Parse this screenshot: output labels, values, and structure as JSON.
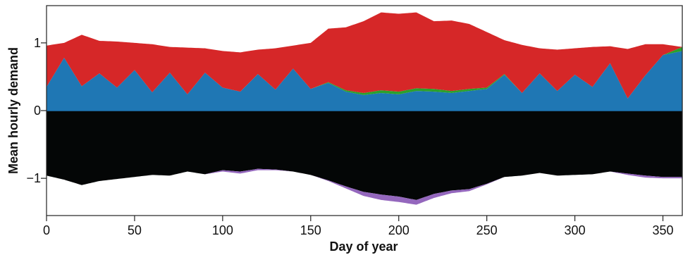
{
  "chart_data": {
    "type": "area",
    "title": "",
    "xlabel": "Day of year",
    "ylabel": "Mean hourly demand",
    "xlim": [
      0,
      361
    ],
    "ylim": [
      -1.55,
      1.55
    ],
    "x_ticks": [
      0,
      50,
      100,
      150,
      200,
      250,
      300,
      350
    ],
    "x_tick_labels": [
      "0",
      "50",
      "100",
      "150",
      "200",
      "250",
      "300",
      "350"
    ],
    "y_ticks": [
      1,
      0,
      -1
    ],
    "y_tick_labels": [
      "1",
      "0",
      "−1"
    ],
    "grid": false,
    "legend": "none",
    "stack_note": "positive stack above zero; negative stack below zero",
    "series": [
      {
        "name": "",
        "color": "#1f77b4",
        "side": "positive",
        "x": [
          0,
          10,
          20,
          30,
          40,
          50,
          60,
          70,
          80,
          90,
          100,
          110,
          120,
          130,
          140,
          150,
          160,
          170,
          180,
          190,
          200,
          210,
          220,
          230,
          240,
          250,
          260,
          270,
          280,
          290,
          300,
          310,
          320,
          330,
          340,
          350,
          361
        ],
        "values": [
          0.35,
          0.78,
          0.36,
          0.55,
          0.34,
          0.6,
          0.27,
          0.56,
          0.24,
          0.56,
          0.34,
          0.28,
          0.54,
          0.31,
          0.62,
          0.32,
          0.41,
          0.28,
          0.23,
          0.26,
          0.24,
          0.29,
          0.28,
          0.26,
          0.29,
          0.32,
          0.53,
          0.26,
          0.55,
          0.29,
          0.53,
          0.35,
          0.7,
          0.18,
          0.52,
          0.82,
          0.88
        ]
      },
      {
        "name": "",
        "color": "#2ca02c",
        "side": "positive",
        "x": [
          0,
          10,
          20,
          30,
          40,
          50,
          60,
          70,
          80,
          90,
          100,
          110,
          120,
          130,
          140,
          150,
          160,
          170,
          180,
          190,
          200,
          210,
          220,
          230,
          240,
          250,
          260,
          270,
          280,
          290,
          300,
          310,
          320,
          330,
          340,
          350,
          361
        ],
        "values": [
          0.0,
          0.0,
          0.0,
          0.0,
          0.0,
          0.0,
          0.0,
          0.0,
          0.0,
          0.0,
          0.0,
          0.0,
          0.0,
          0.0,
          0.0,
          0.0,
          0.01,
          0.02,
          0.03,
          0.04,
          0.04,
          0.04,
          0.04,
          0.03,
          0.03,
          0.02,
          0.01,
          0.0,
          0.0,
          0.0,
          0.0,
          0.0,
          0.0,
          0.0,
          0.0,
          0.0,
          0.06
        ]
      },
      {
        "name": "",
        "color": "#d62728",
        "side": "positive",
        "x": [
          0,
          10,
          20,
          30,
          40,
          50,
          60,
          70,
          80,
          90,
          100,
          110,
          120,
          130,
          140,
          150,
          160,
          170,
          180,
          190,
          200,
          210,
          220,
          230,
          240,
          250,
          260,
          270,
          280,
          290,
          300,
          310,
          320,
          330,
          340,
          350,
          361
        ],
        "values": [
          0.61,
          0.22,
          0.76,
          0.48,
          0.68,
          0.4,
          0.71,
          0.38,
          0.69,
          0.36,
          0.54,
          0.58,
          0.36,
          0.61,
          0.34,
          0.68,
          0.79,
          0.93,
          1.06,
          1.15,
          1.15,
          1.12,
          1.0,
          1.04,
          0.96,
          0.82,
          0.5,
          0.71,
          0.37,
          0.61,
          0.39,
          0.59,
          0.25,
          0.73,
          0.46,
          0.16,
          0.0
        ]
      },
      {
        "name": "",
        "color": "#040606",
        "side": "negative",
        "x": [
          0,
          10,
          20,
          30,
          40,
          50,
          60,
          70,
          80,
          90,
          100,
          110,
          120,
          130,
          140,
          150,
          160,
          170,
          180,
          190,
          200,
          210,
          220,
          230,
          240,
          250,
          260,
          270,
          280,
          290,
          300,
          310,
          320,
          330,
          340,
          350,
          361
        ],
        "values": [
          -0.96,
          -1.02,
          -1.1,
          -1.04,
          -1.01,
          -0.98,
          -0.95,
          -0.96,
          -0.9,
          -0.94,
          -0.88,
          -0.9,
          -0.86,
          -0.87,
          -0.9,
          -0.95,
          -1.03,
          -1.12,
          -1.2,
          -1.24,
          -1.27,
          -1.32,
          -1.23,
          -1.18,
          -1.16,
          -1.08,
          -0.98,
          -0.96,
          -0.92,
          -0.96,
          -0.95,
          -0.94,
          -0.9,
          -0.93,
          -0.96,
          -0.98,
          -0.98
        ]
      },
      {
        "name": "",
        "color": "#9467bd",
        "side": "negative",
        "x": [
          0,
          10,
          20,
          30,
          40,
          50,
          60,
          70,
          80,
          90,
          100,
          110,
          120,
          130,
          140,
          150,
          160,
          170,
          180,
          190,
          200,
          210,
          220,
          230,
          240,
          250,
          260,
          270,
          280,
          290,
          300,
          310,
          320,
          330,
          340,
          350,
          361
        ],
        "values": [
          0.0,
          0.0,
          0.0,
          0.0,
          0.0,
          0.0,
          0.0,
          0.0,
          0.0,
          0.0,
          -0.02,
          -0.03,
          -0.02,
          -0.01,
          0.0,
          0.0,
          -0.01,
          -0.03,
          -0.06,
          -0.08,
          -0.08,
          -0.07,
          -0.06,
          -0.04,
          -0.03,
          -0.01,
          0.0,
          0.0,
          0.0,
          0.0,
          0.0,
          0.0,
          0.0,
          -0.02,
          -0.03,
          -0.02,
          -0.02
        ]
      }
    ]
  }
}
